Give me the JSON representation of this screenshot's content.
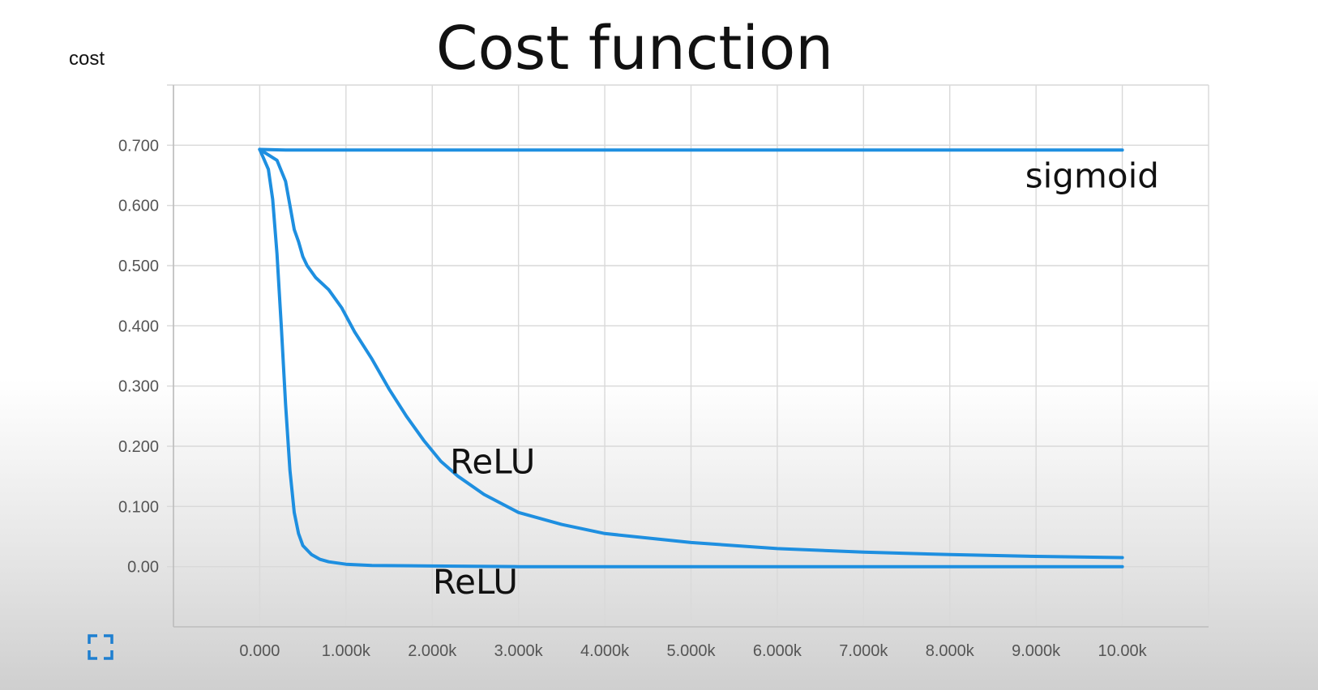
{
  "chart_data": {
    "type": "line",
    "title": "Cost function",
    "ylabel": "cost",
    "xlabel": "",
    "xlim": [
      -1000,
      11000
    ],
    "ylim": [
      -0.1,
      0.8
    ],
    "x_ticks": [
      0,
      1000,
      2000,
      3000,
      4000,
      5000,
      6000,
      7000,
      8000,
      9000,
      10000
    ],
    "x_tick_labels": [
      "0.000",
      "1.000k",
      "2.000k",
      "3.000k",
      "4.000k",
      "5.000k",
      "6.000k",
      "7.000k",
      "8.000k",
      "9.000k",
      "10.00k"
    ],
    "y_ticks": [
      0,
      0.1,
      0.2,
      0.3,
      0.4,
      0.5,
      0.6,
      0.7
    ],
    "y_tick_labels": [
      "0.00",
      "0.100",
      "0.200",
      "0.300",
      "0.400",
      "0.500",
      "0.600",
      "0.700"
    ],
    "grid": true,
    "line_color": "#1e8fe0",
    "series": [
      {
        "x": [
          0,
          300,
          1000,
          2000,
          4000,
          6000,
          8000,
          10000
        ],
        "y": [
          0.693,
          0.692,
          0.692,
          0.692,
          0.692,
          0.692,
          0.692,
          0.692
        ]
      },
      {
        "x": [
          0,
          200,
          300,
          350,
          400,
          450,
          500,
          550,
          650,
          800,
          950,
          1100,
          1300,
          1500,
          1700,
          1900,
          2100,
          2300,
          2600,
          3000,
          3500,
          4000,
          5000,
          6000,
          7000,
          8000,
          9000,
          10000
        ],
        "y": [
          0.693,
          0.675,
          0.64,
          0.6,
          0.56,
          0.54,
          0.515,
          0.5,
          0.48,
          0.46,
          0.43,
          0.39,
          0.345,
          0.295,
          0.25,
          0.21,
          0.175,
          0.15,
          0.12,
          0.09,
          0.07,
          0.055,
          0.04,
          0.03,
          0.024,
          0.02,
          0.017,
          0.015
        ]
      },
      {
        "x": [
          0,
          100,
          150,
          200,
          250,
          300,
          350,
          400,
          450,
          500,
          600,
          700,
          800,
          1000,
          1300,
          2000,
          3000,
          5000,
          7000,
          10000
        ],
        "y": [
          0.693,
          0.66,
          0.61,
          0.52,
          0.4,
          0.27,
          0.16,
          0.09,
          0.055,
          0.035,
          0.02,
          0.012,
          0.008,
          0.004,
          0.002,
          0.001,
          0.0,
          0.0,
          0.0,
          0.0
        ]
      }
    ],
    "annotations": [
      {
        "text": "sigmoid",
        "x": 9650,
        "y": 0.63
      },
      {
        "text": "ReLU",
        "x": 2700,
        "y": 0.155
      },
      {
        "text": "ReLU",
        "x": 2500,
        "y": -0.045
      }
    ]
  }
}
